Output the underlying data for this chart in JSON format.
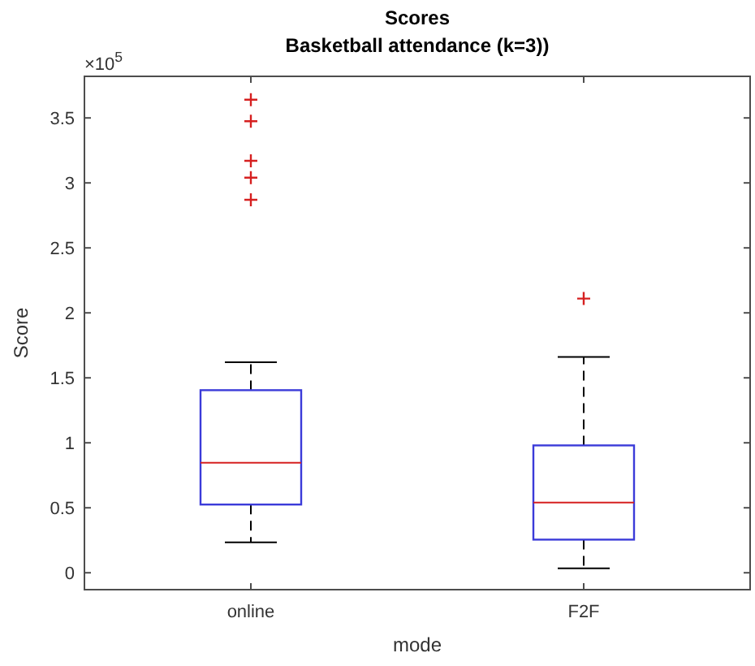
{
  "chart_data": {
    "type": "box",
    "title": "Scores",
    "subtitle": "Basketball attendance (k=3))",
    "xlabel": "mode",
    "ylabel": "Score",
    "categories": [
      "online",
      "F2F"
    ],
    "boxes": [
      {
        "low": 0.234,
        "q1": 0.525,
        "median": 0.846,
        "q3": 1.405,
        "high": 1.62,
        "outliers": [
          3.64,
          3.475,
          3.17,
          3.04,
          2.87
        ]
      },
      {
        "low": 0.034,
        "q1": 0.255,
        "median": 0.54,
        "q3": 0.98,
        "high": 1.66,
        "outliers": [
          2.11
        ]
      }
    ],
    "color": "#3b3bd9",
    "ylim": [
      -0.13,
      3.82
    ],
    "yticks": [
      0,
      0.5,
      1,
      1.5,
      2,
      2.5,
      3,
      3.5
    ],
    "annotations": [
      "×10$^{5}$"
    ],
    "grid": false
  }
}
